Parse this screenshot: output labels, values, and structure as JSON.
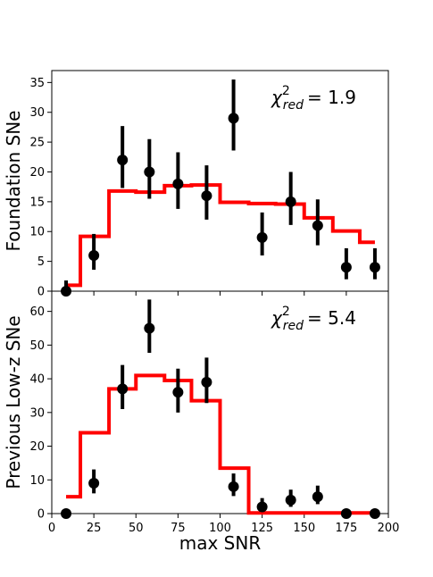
{
  "chart_data": [
    {
      "type": "step+errorbar",
      "ylabel": "Foundation SNe",
      "annotation": {
        "chi_symbol": "χ",
        "sup": "2",
        "sub": "red",
        "equals": "= 1.9"
      },
      "xlim": [
        0,
        200
      ],
      "ylim": [
        0,
        37
      ],
      "yticks": [
        0,
        5,
        10,
        15,
        20,
        25,
        30,
        35
      ],
      "model_color": "#ff0000",
      "model_edges": [
        8.5,
        17,
        34,
        50,
        67,
        83,
        100,
        117,
        133,
        150,
        167,
        183,
        192
      ],
      "model_values": [
        1.0,
        9.2,
        16.8,
        16.6,
        17.7,
        17.8,
        14.9,
        14.7,
        14.6,
        12.3,
        10.1,
        8.2
      ],
      "data_x": [
        8.5,
        25,
        42,
        58,
        75,
        92,
        108,
        125,
        142,
        158,
        175,
        192
      ],
      "data_y": [
        0,
        6,
        22,
        20,
        18,
        16,
        29,
        9,
        15,
        11,
        4,
        4
      ],
      "data_yerr_lo": [
        0,
        2.4,
        4.7,
        4.5,
        4.2,
        4.0,
        5.4,
        3.0,
        3.9,
        3.3,
        2.0,
        2.0
      ],
      "data_yerr_hi": [
        1.8,
        3.6,
        5.7,
        5.5,
        5.3,
        5.1,
        6.5,
        4.2,
        5.0,
        4.4,
        3.2,
        3.2
      ]
    },
    {
      "type": "step+errorbar",
      "ylabel": "Previous Low-z SNe",
      "annotation": {
        "chi_symbol": "χ",
        "sup": "2",
        "sub": "red",
        "equals": "= 5.4"
      },
      "xlabel": "max SNR",
      "xlim": [
        0,
        200
      ],
      "ylim": [
        0,
        66
      ],
      "xticks": [
        0,
        25,
        50,
        75,
        100,
        125,
        150,
        175,
        200
      ],
      "yticks": [
        0,
        10,
        20,
        30,
        40,
        50,
        60
      ],
      "model_color": "#ff0000",
      "model_edges": [
        8.5,
        17,
        34,
        50,
        67,
        83,
        100,
        117,
        133,
        150,
        167,
        183,
        192
      ],
      "model_values": [
        5,
        24,
        37,
        41,
        39.5,
        33.5,
        13.5,
        0.2,
        0.2,
        0.2,
        0.2,
        0.2
      ],
      "data_x": [
        8.5,
        25,
        42,
        58,
        75,
        92,
        108,
        125,
        142,
        158,
        175,
        192
      ],
      "data_y": [
        0,
        9,
        37,
        55,
        36,
        39,
        8,
        2,
        4,
        5,
        0,
        0
      ],
      "data_yerr_lo": [
        0,
        3,
        6,
        7.3,
        6,
        6.2,
        2.8,
        1.4,
        2.0,
        2.2,
        0,
        0
      ],
      "data_yerr_hi": [
        1.2,
        4.1,
        7.1,
        8.5,
        7.0,
        7.3,
        3.9,
        2.6,
        3.1,
        3.3,
        1.0,
        1.0
      ]
    }
  ]
}
